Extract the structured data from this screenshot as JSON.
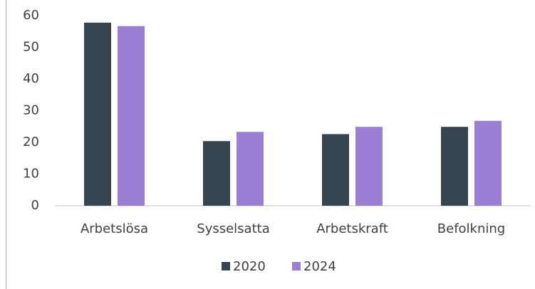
{
  "chart_data": {
    "type": "bar",
    "categories": [
      "Arbetslösa",
      "Sysselsatta",
      "Arbetskraft",
      "Befolkning"
    ],
    "series": [
      {
        "name": "2020",
        "color": "#36454f",
        "values": [
          57.8,
          20.4,
          22.6,
          24.9
        ]
      },
      {
        "name": "2024",
        "color": "#9b7fd4",
        "values": [
          56.7,
          23.3,
          24.9,
          26.8
        ]
      }
    ],
    "ylim": [
      0,
      60
    ],
    "yticks": [
      0,
      10,
      20,
      30,
      40,
      50,
      60
    ],
    "grid": false,
    "legend": "bottom"
  }
}
